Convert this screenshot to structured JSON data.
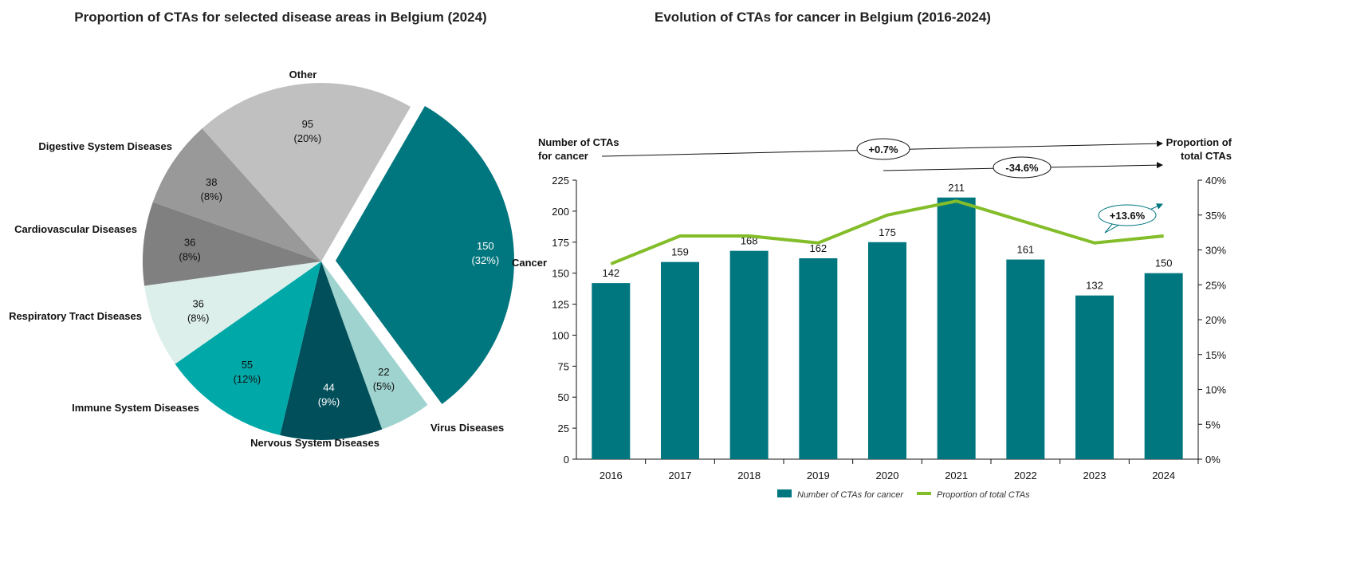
{
  "chart_data": [
    {
      "type": "pie",
      "title": "Proportion of CTAs for selected disease areas in Belgium (2024)",
      "slices": [
        {
          "label": "Cancer",
          "value": 150,
          "pct": "(32%)",
          "color": "#00767e",
          "exploded": true,
          "text_color": "#ffffff"
        },
        {
          "label": "Virus Diseases",
          "value": 22,
          "pct": "(5%)",
          "color": "#9fd3cf",
          "text_color": "#111111"
        },
        {
          "label": "Nervous System Diseases",
          "value": 44,
          "pct": "(9%)",
          "color": "#004f5a",
          "text_color": "#ffffff"
        },
        {
          "label": "Immune System Diseases",
          "value": 55,
          "pct": "(12%)",
          "color": "#00a9a8",
          "text_color": "#111111"
        },
        {
          "label": "Respiratory Tract Diseases",
          "value": 36,
          "pct": "(8%)",
          "color": "#dcefeb",
          "text_color": "#111111"
        },
        {
          "label": "Cardiovascular Diseases",
          "value": 36,
          "pct": "(8%)",
          "color": "#808080",
          "text_color": "#111111"
        },
        {
          "label": "Digestive System Diseases",
          "value": 38,
          "pct": "(8%)",
          "color": "#999999",
          "text_color": "#111111"
        },
        {
          "label": "Other",
          "value": 95,
          "pct": "(20%)",
          "color": "#c0c0c0",
          "text_color": "#111111"
        }
      ]
    },
    {
      "type": "bar+line",
      "title": "Evolution of CTAs for cancer in Belgium (2016-2024)",
      "categories": [
        "2016",
        "2017",
        "2018",
        "2019",
        "2020",
        "2021",
        "2022",
        "2023",
        "2024"
      ],
      "series": [
        {
          "name": "Number of CTAs for cancer",
          "type": "bar",
          "axis": "left",
          "color": "#00767e",
          "values": [
            142,
            159,
            168,
            162,
            175,
            211,
            161,
            132,
            150
          ]
        },
        {
          "name": "Proportion of total CTAs",
          "type": "line",
          "axis": "right",
          "color": "#84bd2a",
          "values": [
            28,
            32,
            32,
            31,
            35,
            37,
            34,
            31,
            32
          ]
        }
      ],
      "ylabel_left": "Number of CTAs for cancer",
      "ylabel_right": "Proportion of total CTAs",
      "y_series_label": "Cancer",
      "ylim_left": [
        0,
        225
      ],
      "yticks_left": [
        0,
        25,
        50,
        75,
        100,
        125,
        150,
        175,
        200,
        225
      ],
      "ylim_right": [
        0,
        40
      ],
      "yticks_right": [
        "0%",
        "5%",
        "10%",
        "15%",
        "20%",
        "25%",
        "30%",
        "35%",
        "40%"
      ],
      "annotations": [
        "+0.7%",
        "-34.6%",
        "+13.6%"
      ],
      "legend_position": "bottom",
      "grid": false
    }
  ]
}
